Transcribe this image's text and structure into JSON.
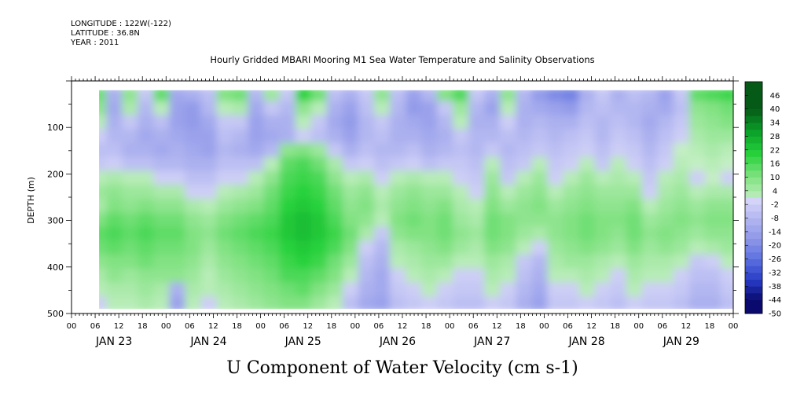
{
  "meta": {
    "longitude": "LONGITUDE : 122W(-122)",
    "latitude": "LATITUDE : 36.8N",
    "year": "YEAR : 2011"
  },
  "chart_data": {
    "type": "heatmap",
    "title": "Hourly Gridded MBARI Mooring M1 Sea Water Temperature and Salinity Observations",
    "xlabel": "U Component of Water Velocity (cm s-1)",
    "ylabel": "DEPTH (m)",
    "x_range_hours": [
      0,
      168
    ],
    "x_time_start": "2011-01-23 00:00",
    "x_tick_hour_labels": [
      "00",
      "06",
      "12",
      "18",
      "00",
      "06",
      "12",
      "18",
      "00",
      "06",
      "12",
      "18",
      "00",
      "06",
      "12",
      "18",
      "00",
      "06",
      "12",
      "18",
      "00",
      "06",
      "12",
      "18",
      "00",
      "06",
      "12",
      "18",
      "00"
    ],
    "x_day_labels": [
      "JAN 23",
      "JAN 24",
      "JAN 25",
      "JAN 26",
      "JAN 27",
      "JAN 28",
      "JAN 29"
    ],
    "y_range": [
      500,
      0
    ],
    "y_ticks": [
      100,
      200,
      300,
      400,
      500
    ],
    "data_x_start_hour": 7,
    "data_depth_range": [
      20,
      490
    ],
    "colorbar_levels": [
      "46",
      "40",
      "34",
      "28",
      "22",
      "16",
      "10",
      "4",
      "-2",
      "-8",
      "-14",
      "-20",
      "-26",
      "-32",
      "-38",
      "-44",
      "-50"
    ],
    "colorbar_min": -50,
    "colorbar_max": 52,
    "colorbar_step": 3,
    "column_times_hours": [
      7,
      11,
      15,
      19,
      23,
      27,
      31,
      35,
      39,
      43,
      47,
      51,
      55,
      59,
      63,
      67,
      71,
      75,
      79,
      83,
      87,
      91,
      95,
      99,
      103,
      107,
      111,
      115,
      119,
      123,
      127,
      131,
      135,
      139,
      143,
      147,
      151,
      155,
      159,
      163,
      167
    ],
    "row_depths_m": [
      30,
      60,
      90,
      120,
      150,
      180,
      210,
      240,
      270,
      300,
      330,
      360,
      390,
      420,
      450,
      480
    ],
    "values_cm_s": [
      [
        12,
        -10,
        8,
        -4,
        14,
        -12,
        -10,
        -6,
        10,
        12,
        -8,
        6,
        -4,
        20,
        12,
        -6,
        -10,
        -4,
        8,
        -6,
        -14,
        -8,
        10,
        16,
        -4,
        -10,
        8,
        -8,
        -16,
        -20,
        -22,
        -10,
        -4,
        -10,
        -6,
        -8,
        -14,
        -4,
        14,
        16,
        18
      ],
      [
        8,
        -12,
        4,
        -8,
        2,
        -14,
        -16,
        -8,
        2,
        4,
        -12,
        -4,
        -8,
        8,
        2,
        -10,
        -14,
        -6,
        2,
        -8,
        -16,
        -14,
        -4,
        6,
        -8,
        -14,
        2,
        -10,
        -12,
        -14,
        -16,
        -8,
        -6,
        -8,
        -8,
        -10,
        -12,
        -6,
        8,
        10,
        12
      ],
      [
        2,
        -10,
        -4,
        -10,
        -6,
        -14,
        -16,
        -12,
        -4,
        -4,
        -14,
        -10,
        -10,
        2,
        -4,
        -12,
        -16,
        -8,
        -4,
        -10,
        -12,
        -14,
        -8,
        2,
        -10,
        -10,
        -2,
        -10,
        -8,
        -10,
        -10,
        -6,
        -8,
        -6,
        -8,
        -12,
        -8,
        -4,
        6,
        8,
        10
      ],
      [
        -2,
        -8,
        -8,
        -12,
        -10,
        -12,
        -14,
        -14,
        -6,
        -8,
        -14,
        -12,
        -10,
        -2,
        -6,
        -10,
        -14,
        -8,
        -6,
        -10,
        -10,
        -12,
        -10,
        -4,
        -8,
        -8,
        -6,
        -8,
        -6,
        -8,
        -6,
        -4,
        -8,
        -4,
        -6,
        -10,
        -6,
        -2,
        4,
        6,
        6
      ],
      [
        -6,
        -6,
        -10,
        -10,
        -12,
        -10,
        -12,
        -14,
        -8,
        -10,
        -12,
        -8,
        8,
        10,
        6,
        -4,
        -10,
        -6,
        -8,
        -8,
        -6,
        -10,
        -8,
        -6,
        -8,
        -4,
        -8,
        -6,
        -4,
        -6,
        -4,
        -2,
        -6,
        -2,
        -4,
        -8,
        -4,
        0,
        2,
        4,
        2
      ],
      [
        -4,
        -2,
        -6,
        -6,
        -8,
        -8,
        -10,
        -10,
        -6,
        -6,
        -6,
        2,
        14,
        16,
        12,
        4,
        -4,
        -2,
        -6,
        -4,
        -2,
        -6,
        -4,
        -4,
        -6,
        2,
        -6,
        -4,
        2,
        -4,
        -2,
        2,
        -4,
        2,
        -2,
        -6,
        -2,
        2,
        0,
        2,
        0
      ],
      [
        2,
        4,
        2,
        2,
        -2,
        -2,
        -6,
        -6,
        -2,
        -2,
        2,
        8,
        16,
        18,
        16,
        8,
        2,
        4,
        -2,
        2,
        4,
        2,
        2,
        -2,
        -4,
        6,
        -4,
        2,
        6,
        -2,
        2,
        6,
        2,
        4,
        2,
        -4,
        2,
        4,
        -2,
        0,
        -2
      ],
      [
        6,
        8,
        6,
        6,
        4,
        4,
        -2,
        -2,
        2,
        4,
        6,
        12,
        18,
        20,
        18,
        12,
        6,
        8,
        2,
        6,
        8,
        6,
        6,
        2,
        -2,
        8,
        2,
        6,
        8,
        2,
        6,
        8,
        6,
        6,
        6,
        -2,
        4,
        6,
        2,
        4,
        4
      ],
      [
        4,
        10,
        8,
        10,
        8,
        8,
        4,
        2,
        6,
        8,
        10,
        14,
        20,
        22,
        20,
        14,
        8,
        10,
        4,
        8,
        10,
        8,
        10,
        4,
        2,
        10,
        6,
        8,
        10,
        6,
        8,
        10,
        8,
        8,
        10,
        2,
        6,
        8,
        6,
        8,
        8
      ],
      [
        10,
        14,
        12,
        14,
        12,
        12,
        8,
        6,
        10,
        12,
        14,
        16,
        22,
        24,
        22,
        16,
        10,
        8,
        2,
        10,
        12,
        10,
        12,
        6,
        4,
        12,
        10,
        8,
        8,
        8,
        10,
        12,
        10,
        10,
        12,
        6,
        8,
        10,
        8,
        10,
        10
      ],
      [
        14,
        16,
        14,
        16,
        14,
        14,
        10,
        8,
        12,
        14,
        16,
        18,
        22,
        24,
        22,
        18,
        12,
        4,
        -4,
        8,
        10,
        10,
        12,
        8,
        6,
        12,
        10,
        6,
        4,
        8,
        10,
        12,
        10,
        8,
        12,
        8,
        10,
        8,
        6,
        8,
        8
      ],
      [
        12,
        14,
        12,
        14,
        12,
        12,
        10,
        6,
        10,
        12,
        14,
        16,
        20,
        22,
        20,
        16,
        10,
        -2,
        -8,
        4,
        6,
        8,
        10,
        6,
        4,
        10,
        8,
        2,
        -2,
        6,
        8,
        10,
        8,
        6,
        10,
        6,
        8,
        6,
        2,
        4,
        6
      ],
      [
        8,
        10,
        10,
        12,
        10,
        10,
        8,
        4,
        8,
        10,
        12,
        14,
        18,
        20,
        18,
        12,
        6,
        -6,
        -10,
        2,
        4,
        6,
        6,
        2,
        2,
        6,
        4,
        -4,
        -8,
        4,
        6,
        6,
        4,
        2,
        6,
        4,
        4,
        2,
        -4,
        -2,
        2
      ],
      [
        4,
        8,
        6,
        8,
        8,
        8,
        6,
        2,
        6,
        8,
        10,
        12,
        16,
        16,
        14,
        10,
        2,
        -8,
        -12,
        -2,
        2,
        4,
        2,
        -2,
        -2,
        4,
        2,
        -6,
        -10,
        2,
        2,
        4,
        2,
        -2,
        4,
        2,
        2,
        -2,
        -6,
        -6,
        -2
      ],
      [
        2,
        4,
        4,
        6,
        4,
        -10,
        4,
        2,
        4,
        6,
        8,
        10,
        12,
        14,
        10,
        6,
        -2,
        -10,
        -12,
        -4,
        -2,
        2,
        -2,
        -4,
        -4,
        2,
        -2,
        -8,
        -12,
        -2,
        -2,
        2,
        -2,
        -4,
        2,
        -2,
        -2,
        -4,
        -8,
        -8,
        -4
      ],
      [
        -2,
        2,
        2,
        4,
        2,
        -14,
        2,
        -2,
        2,
        4,
        6,
        8,
        10,
        10,
        6,
        2,
        -6,
        -12,
        -14,
        -6,
        -4,
        -2,
        -4,
        -6,
        -6,
        -2,
        -4,
        -10,
        -14,
        -4,
        -4,
        -2,
        -4,
        -6,
        -2,
        -4,
        -4,
        -6,
        -10,
        -10,
        -6
      ]
    ]
  }
}
